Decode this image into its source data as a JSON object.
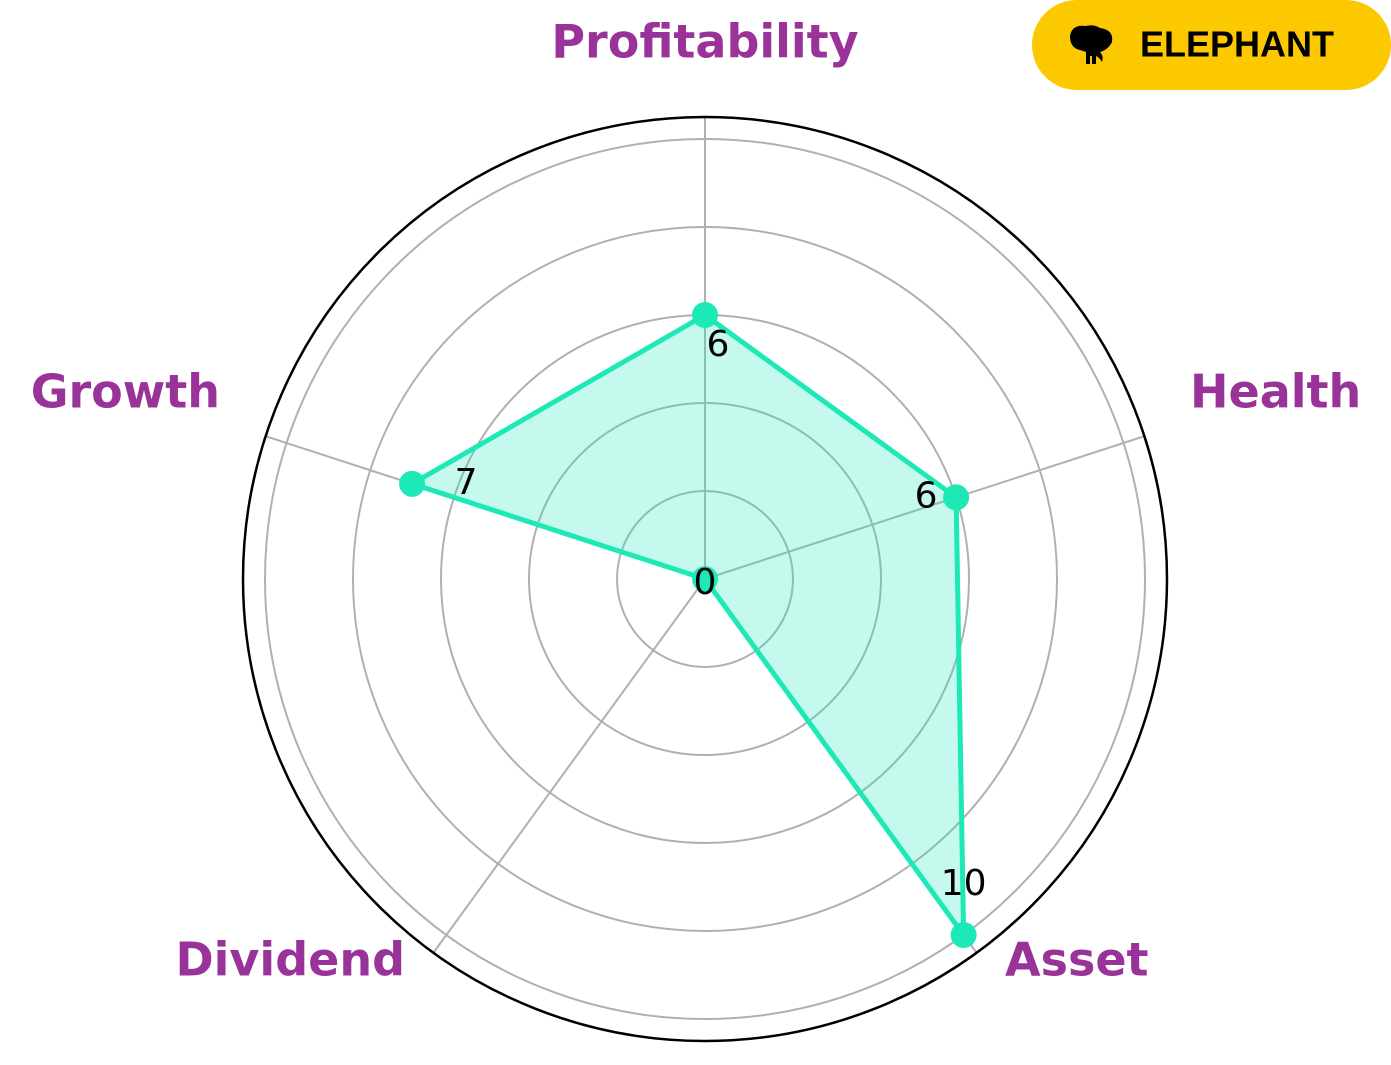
{
  "chart_data": {
    "type": "radar",
    "categories": [
      "Profitability",
      "Health",
      "Asset",
      "Dividend",
      "Growth"
    ],
    "values": [
      6,
      6,
      10,
      0,
      7
    ],
    "color": "#1de9b6",
    "ylim": [
      0,
      10.5
    ],
    "yticks": [
      2,
      4,
      6,
      8,
      10
    ],
    "grid": true
  },
  "logo": {
    "text": "ELEPHANT"
  }
}
